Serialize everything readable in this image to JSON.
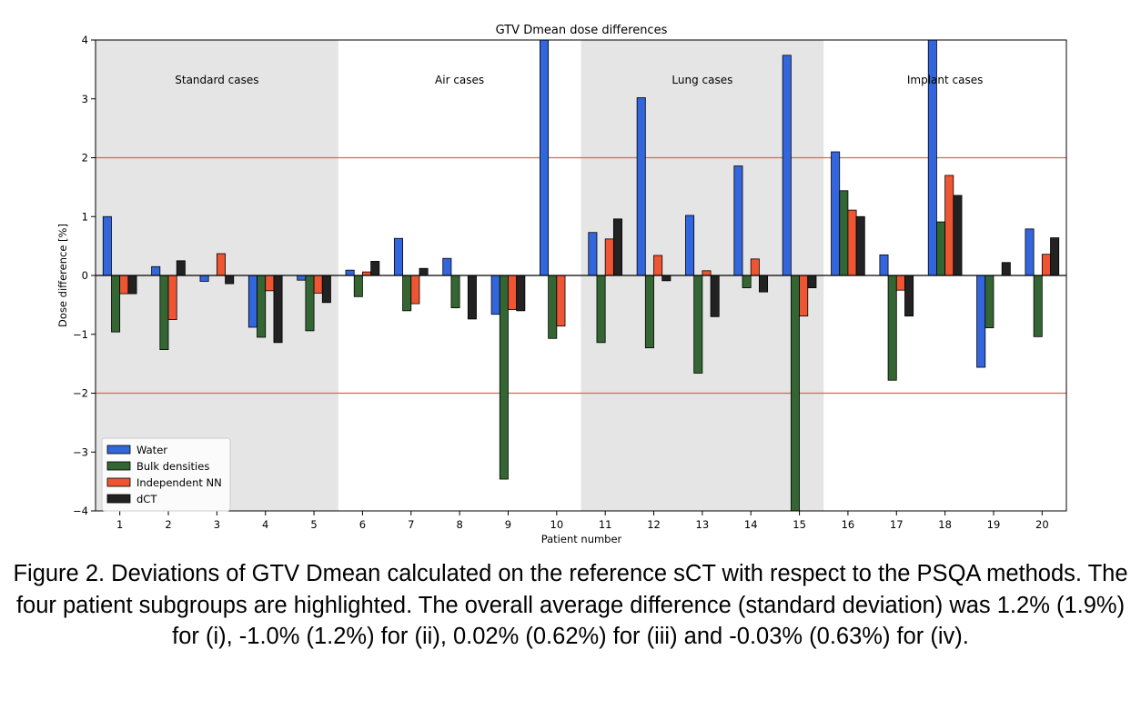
{
  "chart_data": {
    "type": "bar",
    "title": "GTV Dmean dose differences",
    "xlabel": "Patient number",
    "ylabel": "Dose difference [%]",
    "ylim": [
      -4,
      4
    ],
    "yticks": [
      {
        "value": -4,
        "label": "−4"
      },
      {
        "value": -3,
        "label": "−3"
      },
      {
        "value": -2,
        "label": "−2"
      },
      {
        "value": -1,
        "label": "−1"
      },
      {
        "value": 0,
        "label": "0"
      },
      {
        "value": 1,
        "label": "1"
      },
      {
        "value": 2,
        "label": "2"
      },
      {
        "value": 3,
        "label": "3"
      },
      {
        "value": 4,
        "label": "4"
      }
    ],
    "categories": [
      "1",
      "2",
      "3",
      "4",
      "5",
      "6",
      "7",
      "8",
      "9",
      "10",
      "11",
      "12",
      "13",
      "14",
      "15",
      "16",
      "17",
      "18",
      "19",
      "20"
    ],
    "series": [
      {
        "name": "Water",
        "color": "#3366dd",
        "values": [
          1.0,
          0.15,
          -0.1,
          -0.88,
          -0.08,
          0.09,
          0.63,
          0.29,
          -0.66,
          4.0,
          0.73,
          3.02,
          1.02,
          1.86,
          3.74,
          2.1,
          0.35,
          4.0,
          -1.56,
          0.79
        ]
      },
      {
        "name": "Bulk densities",
        "color": "#336633",
        "values": [
          -0.96,
          -1.26,
          0.0,
          -1.05,
          -0.94,
          -0.36,
          -0.6,
          -0.55,
          -3.46,
          -1.07,
          -1.14,
          -1.23,
          -1.66,
          -0.21,
          -4.0,
          1.44,
          -1.78,
          0.91,
          -0.89,
          -1.04
        ]
      },
      {
        "name": "Independent NN",
        "color": "#ee5533",
        "values": [
          -0.31,
          -0.75,
          0.37,
          -0.26,
          -0.3,
          0.06,
          -0.48,
          0.0,
          -0.58,
          -0.86,
          0.62,
          0.34,
          0.08,
          0.28,
          -0.69,
          1.11,
          -0.25,
          1.7,
          0.0,
          0.36
        ]
      },
      {
        "name": "dCT",
        "color": "#222222",
        "values": [
          -0.31,
          0.25,
          -0.14,
          -1.14,
          -0.46,
          0.24,
          0.12,
          -0.74,
          -0.6,
          0.0,
          0.96,
          -0.09,
          -0.7,
          -0.28,
          -0.21,
          1.0,
          -0.69,
          1.36,
          0.22,
          0.64
        ]
      }
    ],
    "groups": [
      {
        "label": "Standard cases",
        "from": 1,
        "to": 5,
        "shaded": true
      },
      {
        "label": "Air cases",
        "from": 6,
        "to": 10,
        "shaded": false
      },
      {
        "label": "Lung cases",
        "from": 11,
        "to": 15,
        "shaded": true
      },
      {
        "label": "Implant cases",
        "from": 16,
        "to": 20,
        "shaded": false
      }
    ],
    "threshold_lines": [
      2,
      -2
    ],
    "threshold_color": "#e06060",
    "shade_color": "#e5e5e5",
    "legend_position": "lower-left",
    "grid": false
  },
  "caption": "Figure 2. Deviations of GTV Dmean calculated on the reference sCT with respect to the PSQA methods. The four patient subgroups are highlighted. The overall average difference (standard deviation) was 1.2% (1.9%) for (i), -1.0% (1.2%) for (ii), 0.02% (0.62%) for (iii) and -0.03% (0.63%) for (iv)."
}
